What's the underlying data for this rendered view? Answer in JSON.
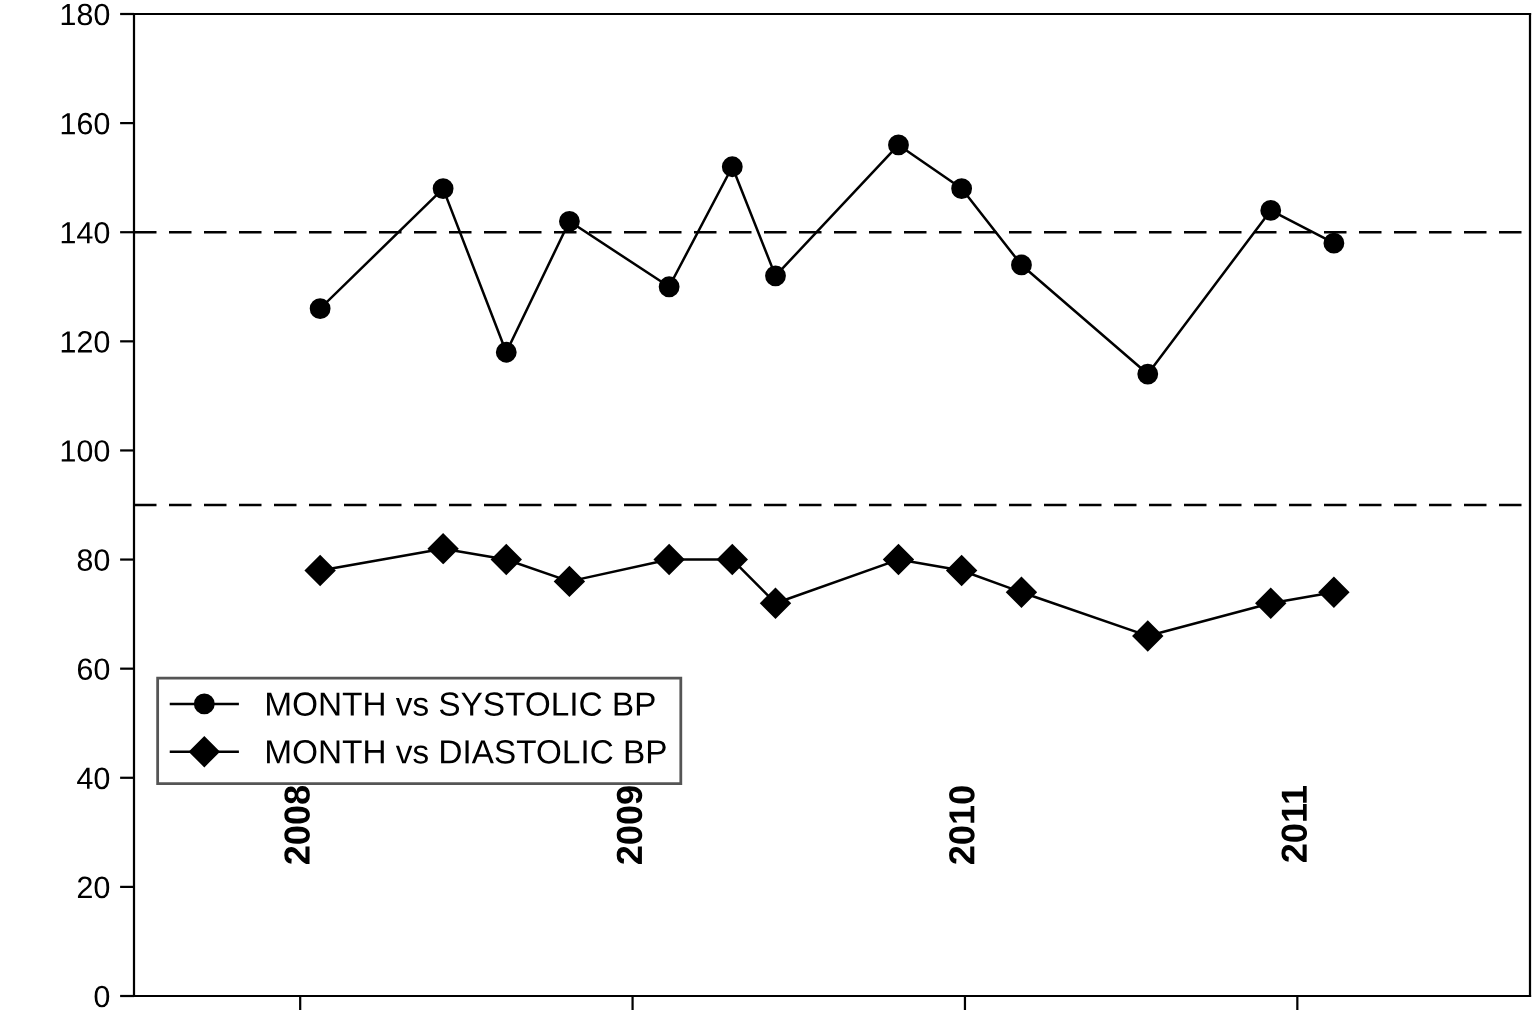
{
  "chart_data": {
    "type": "line",
    "x": [
      2008.06,
      2008.43,
      2008.62,
      2008.81,
      2009.11,
      2009.3,
      2009.43,
      2009.8,
      2009.99,
      2010.17,
      2010.55,
      2010.92,
      2011.11
    ],
    "series": [
      {
        "name": "MONTH vs SYSTOLIC BP",
        "color": "#000000",
        "marker": "circle",
        "values": [
          126,
          148,
          118,
          142,
          130,
          152,
          132,
          156,
          148,
          134,
          114,
          144,
          138
        ]
      },
      {
        "name": "MONTH vs DIASTOLIC BP",
        "color": "#000000",
        "marker": "diamond",
        "values": [
          78,
          82,
          80,
          76,
          80,
          80,
          72,
          80,
          78,
          74,
          66,
          72,
          74
        ]
      }
    ],
    "xlim": [
      2007.5,
      2011.7
    ],
    "xticks": [
      2008,
      2009,
      2010,
      2011
    ],
    "ylim": [
      0,
      180
    ],
    "yticks": [
      0,
      20,
      40,
      60,
      80,
      100,
      120,
      140,
      160,
      180
    ],
    "ref_lines": [
      {
        "axis": "y",
        "value": 140,
        "color": "#000000",
        "line_style": "dashed"
      },
      {
        "axis": "y",
        "value": 90,
        "color": "#000000",
        "line_style": "dashed"
      }
    ],
    "grid": false,
    "legend": "left",
    "line_style": "solid"
  }
}
